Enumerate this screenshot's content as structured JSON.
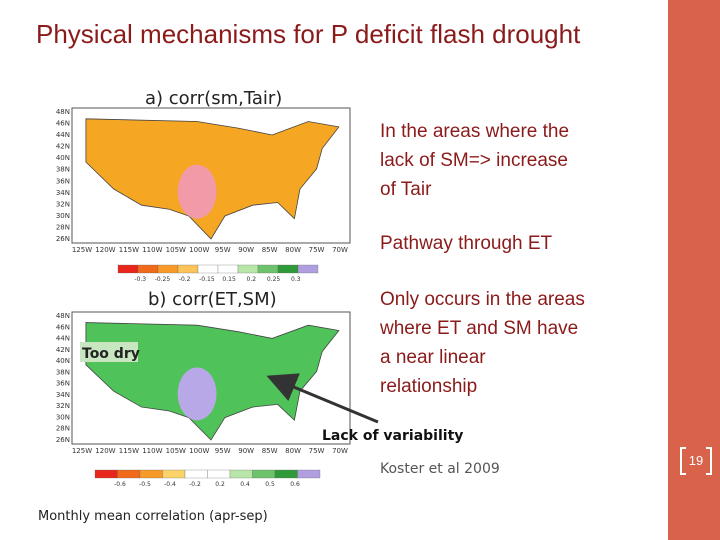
{
  "title": "Physical mechanisms for P deficit flash drought",
  "map_a": {
    "label": "a)  corr(sm,Tair)",
    "lat_labels": [
      "48N",
      "46N",
      "44N",
      "42N",
      "40N",
      "38N",
      "36N",
      "34N",
      "32N",
      "30N",
      "28N",
      "26N"
    ],
    "lon_labels": [
      "125W",
      "120W",
      "115W",
      "110W",
      "105W",
      "100W",
      "95W",
      "90W",
      "85W",
      "80W",
      "75W",
      "70W"
    ],
    "colorbar_labels": [
      "-0.3",
      "-0.25",
      "-0.2",
      "-0.15",
      "0.15",
      "0.2",
      "0.25",
      "0.3"
    ]
  },
  "map_b": {
    "label": "b)  corr(ET,SM)",
    "lat_labels": [
      "48N",
      "46N",
      "44N",
      "42N",
      "40N",
      "38N",
      "36N",
      "34N",
      "32N",
      "30N",
      "28N",
      "26N"
    ],
    "lon_labels": [
      "125W",
      "120W",
      "115W",
      "110W",
      "105W",
      "100W",
      "95W",
      "90W",
      "85W",
      "80W",
      "75W",
      "70W"
    ],
    "colorbar_labels": [
      "-0.6",
      "-0.5",
      "-0.4",
      "-0.2",
      "0.2",
      "0.4",
      "0.5",
      "0.6"
    ],
    "annotation_left": "Too dry",
    "annotation_bottom": "Lack of variability"
  },
  "bullets": [
    {
      "lines": [
        "In the areas where the",
        "lack of SM=> increase",
        "of Tair"
      ]
    },
    {
      "lines": [
        "Pathway through ET"
      ]
    },
    {
      "lines": [
        "Only occurs in the areas",
        "where ET and SM have",
        "a near linear",
        "relationship"
      ]
    }
  ],
  "citation": "Koster et al 2009",
  "footer": "Monthly mean correlation (apr-sep)",
  "page_number": "19"
}
